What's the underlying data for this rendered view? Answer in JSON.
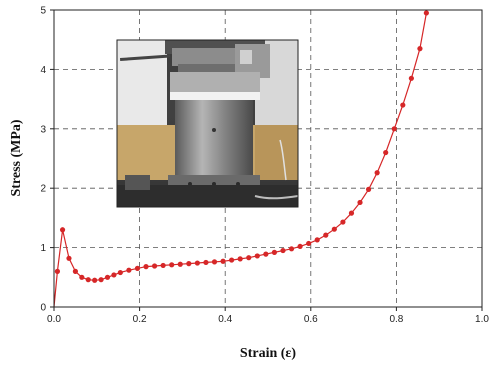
{
  "chart_data": {
    "type": "line",
    "title": "",
    "xlabel": "Strain (ε)",
    "ylabel": "Stress (MPa)",
    "xlim": [
      0.0,
      1.0
    ],
    "ylim": [
      0,
      5
    ],
    "x_ticks": [
      "0.0",
      "0.2",
      "0.4",
      "0.6",
      "0.8",
      "1.0"
    ],
    "y_ticks": [
      "0",
      "1",
      "2",
      "3",
      "4",
      "5"
    ],
    "grid": true,
    "grid_style": "dashed",
    "legend": "none",
    "series": [
      {
        "color": "#d62728",
        "marker": "circle",
        "x": [
          0.0,
          0.008,
          0.02,
          0.035,
          0.05,
          0.065,
          0.08,
          0.095,
          0.11,
          0.125,
          0.14,
          0.155,
          0.175,
          0.195,
          0.215,
          0.235,
          0.255,
          0.275,
          0.295,
          0.315,
          0.335,
          0.355,
          0.375,
          0.395,
          0.415,
          0.435,
          0.455,
          0.475,
          0.495,
          0.515,
          0.535,
          0.555,
          0.575,
          0.595,
          0.615,
          0.635,
          0.655,
          0.675,
          0.695,
          0.715,
          0.735,
          0.755,
          0.775,
          0.795,
          0.815,
          0.835,
          0.855,
          0.87
        ],
        "y": [
          0.0,
          0.6,
          1.3,
          0.82,
          0.6,
          0.5,
          0.46,
          0.45,
          0.46,
          0.5,
          0.54,
          0.58,
          0.62,
          0.65,
          0.68,
          0.69,
          0.7,
          0.71,
          0.72,
          0.73,
          0.74,
          0.75,
          0.76,
          0.77,
          0.79,
          0.81,
          0.83,
          0.86,
          0.89,
          0.92,
          0.95,
          0.98,
          1.02,
          1.07,
          1.13,
          1.21,
          1.31,
          1.43,
          1.58,
          1.76,
          1.98,
          2.26,
          2.6,
          3.0,
          3.4,
          3.85,
          4.35,
          4.95
        ]
      }
    ]
  },
  "inset": {
    "photo_icon": "compression-test-machine-photo"
  }
}
